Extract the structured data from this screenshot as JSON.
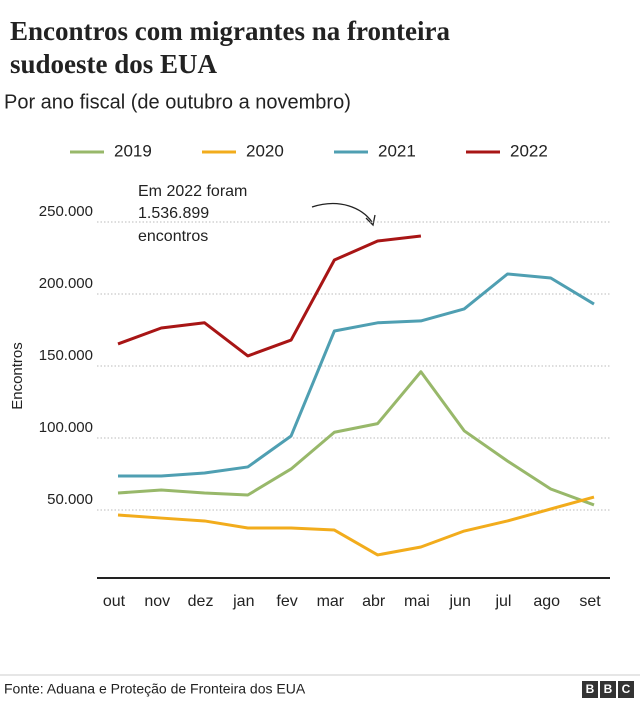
{
  "chart_data": {
    "type": "line",
    "title": [
      "Encontros com migrantes na fronteira",
      "sudoeste dos EUA"
    ],
    "subtitle": "Por ano fiscal (de outubro a novembro)",
    "y_label": "Encontros",
    "annotation": [
      "Em 2022 foram",
      "1.536.899",
      "encontros"
    ],
    "source": "Fonte: Aduana e Proteção de Fronteira dos EUA",
    "logo": [
      "B",
      "B",
      "C"
    ],
    "categories": [
      "out",
      "nov",
      "dez",
      "jan",
      "fev",
      "mar",
      "abr",
      "mai",
      "jun",
      "jul",
      "ago",
      "set"
    ],
    "series": [
      {
        "name": "2019",
        "color": "#98b86a",
        "values": [
          61800,
          63900,
          61800,
          60400,
          78500,
          104000,
          110000,
          146000,
          105000,
          84000,
          64600,
          53500
        ]
      },
      {
        "name": "2020",
        "color": "#f2ac1c",
        "values": [
          46500,
          44400,
          42400,
          37500,
          37500,
          36100,
          18800,
          24300,
          35400,
          42400,
          50700,
          59000
        ]
      },
      {
        "name": "2021",
        "color": "#4f9fb2",
        "values": [
          73600,
          73600,
          75700,
          79900,
          101400,
          174300,
          180000,
          181300,
          189600,
          213900,
          211100,
          193000
        ]
      },
      {
        "name": "2022",
        "color": "#a81515",
        "values": [
          165300,
          176400,
          180000,
          157000,
          168000,
          223600,
          236800,
          240300,
          null,
          null,
          null,
          null
        ]
      }
    ],
    "ylim": [
      0,
      270000
    ],
    "yticks": [
      {
        "value": 50000,
        "label": "50.000"
      },
      {
        "value": 100000,
        "label": "100.000"
      },
      {
        "value": 150000,
        "label": "150.000"
      },
      {
        "value": 200000,
        "label": "200.000"
      },
      {
        "value": 250000,
        "label": "250.000"
      }
    ],
    "grid": true
  }
}
